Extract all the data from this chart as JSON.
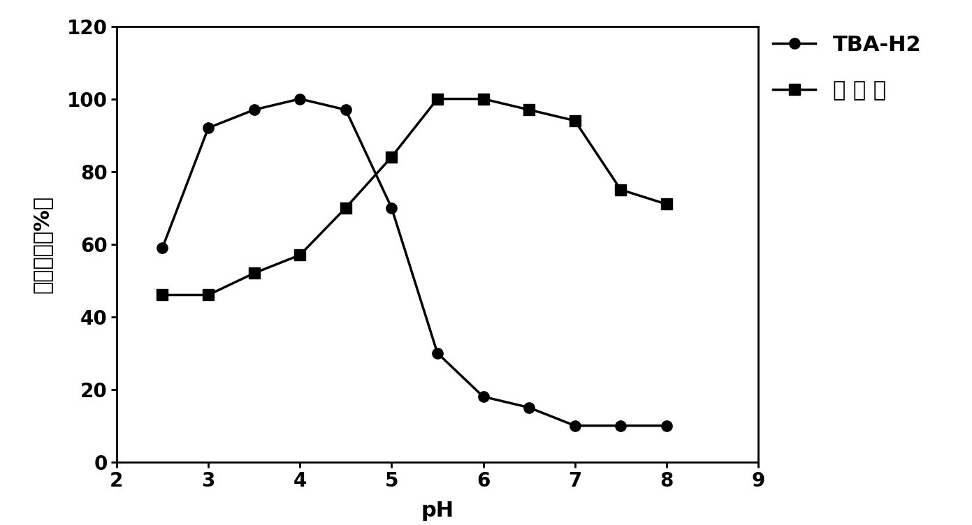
{
  "tba_h2_x": [
    2.5,
    3.0,
    3.5,
    4.0,
    4.5,
    5.0,
    5.5,
    6.0,
    6.5,
    7.0,
    7.5,
    8.0
  ],
  "tba_h2_y": [
    59,
    92,
    97,
    100,
    97,
    70,
    30,
    18,
    15,
    10,
    10,
    10
  ],
  "wild_x": [
    2.5,
    3.0,
    3.5,
    4.0,
    4.5,
    5.0,
    5.5,
    6.0,
    6.5,
    7.0,
    7.5,
    8.0
  ],
  "wild_y": [
    46,
    46,
    52,
    57,
    70,
    84,
    100,
    100,
    97,
    94,
    75,
    71
  ],
  "line_color": "#000000",
  "marker_circle": "o",
  "marker_square": "s",
  "xlabel": "pH",
  "ylabel_chars": [
    "相对",
    "酶活",
    "（%）"
  ],
  "legend_tba": "TBA-H2",
  "legend_wild": "野 生 型",
  "xlim": [
    2,
    9
  ],
  "ylim": [
    0,
    120
  ],
  "xticks": [
    2,
    3,
    4,
    5,
    6,
    7,
    8,
    9
  ],
  "yticks": [
    0,
    20,
    40,
    60,
    80,
    100,
    120
  ],
  "label_fontsize": 22,
  "tick_fontsize": 20,
  "legend_fontsize": 22,
  "linewidth": 2.5,
  "markersize": 11
}
